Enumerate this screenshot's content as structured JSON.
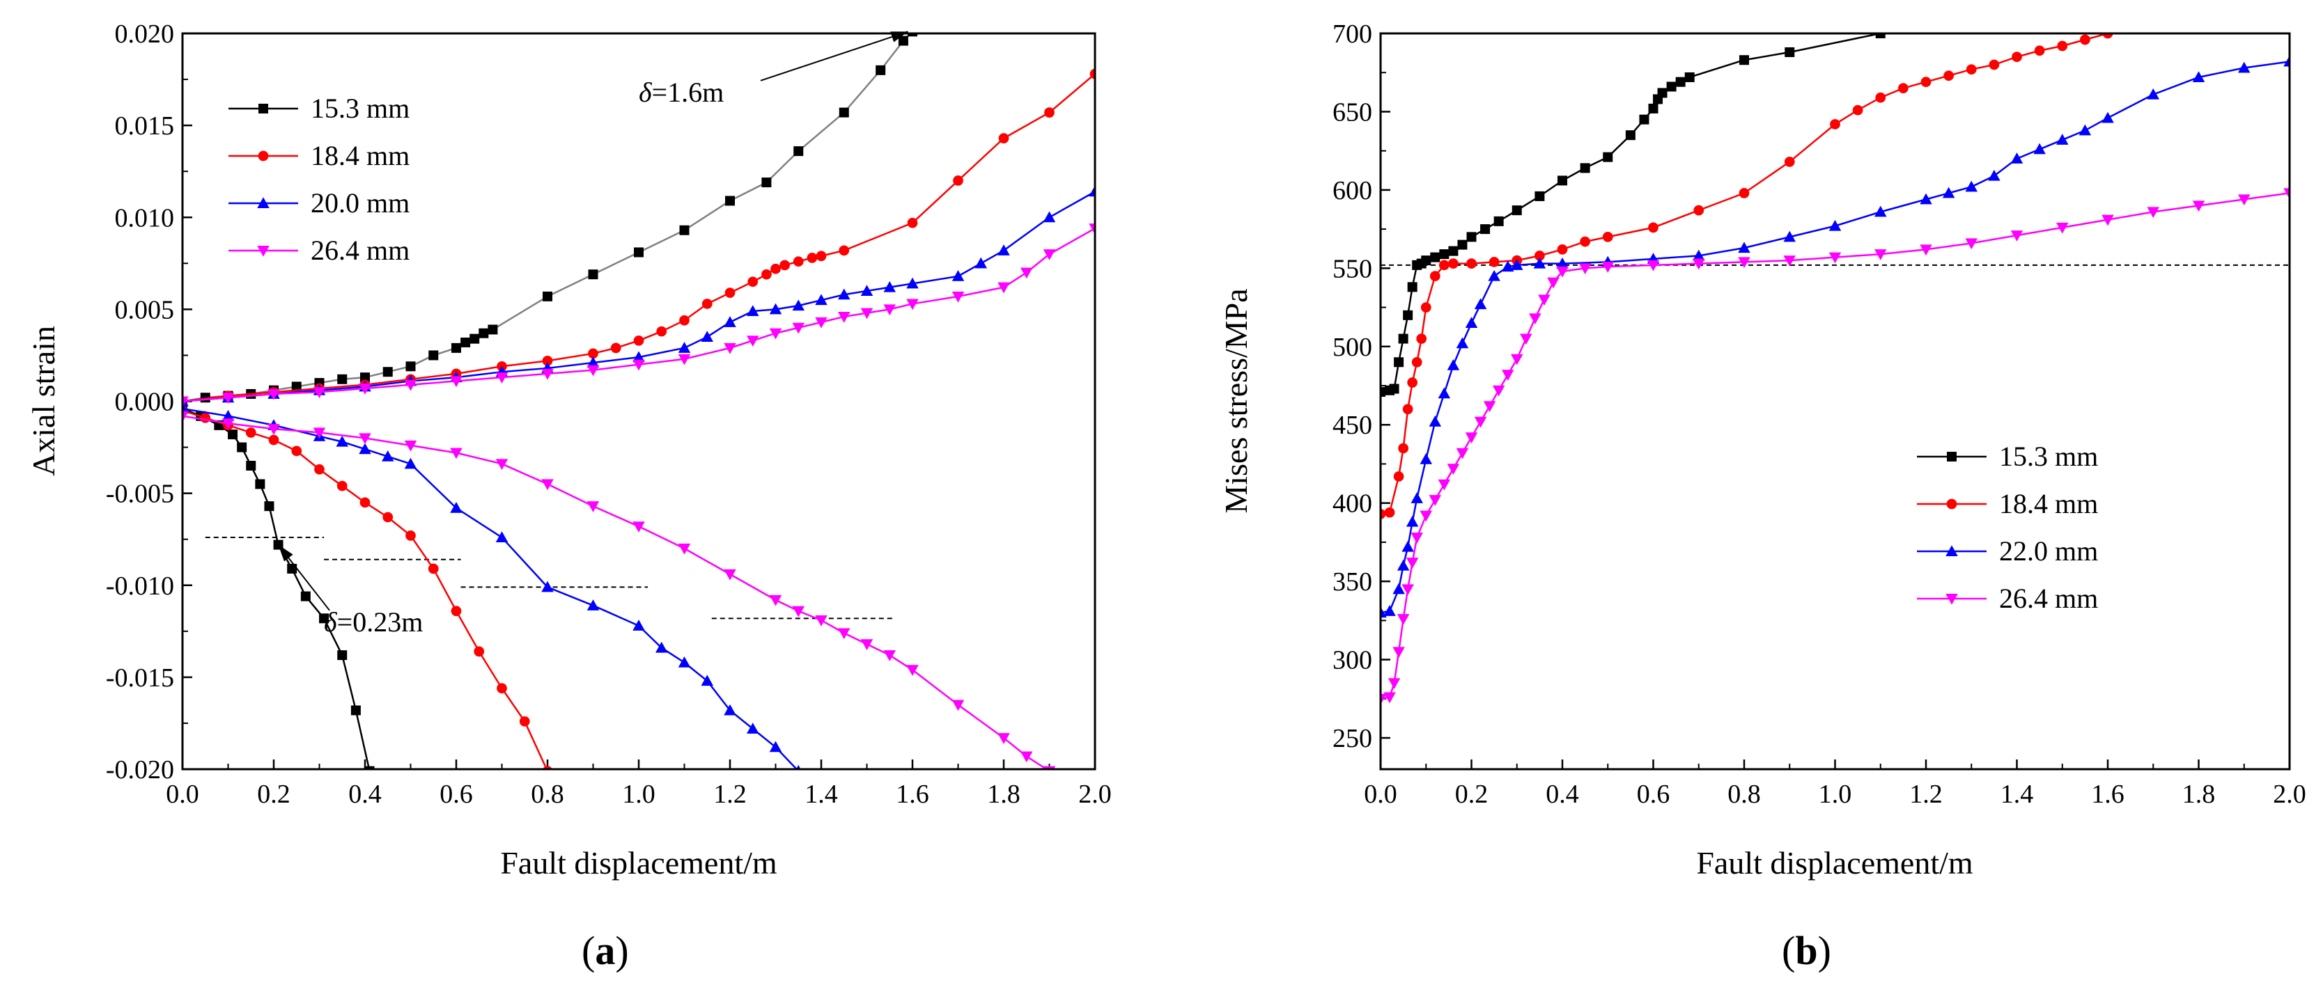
{
  "chart_data": [
    {
      "type": "line",
      "panel_label": "(a)",
      "xlabel": "Fault displacement/m",
      "ylabel": "Axial strain",
      "xlim": [
        0,
        2.0
      ],
      "ylim": [
        -0.02,
        0.02
      ],
      "xticks": [
        "0.0",
        "0.2",
        "0.4",
        "0.6",
        "0.8",
        "1.0",
        "1.2",
        "1.4",
        "1.6",
        "1.8",
        "2.0"
      ],
      "yticks": [
        "0.020",
        "0.015",
        "0.010",
        "0.005",
        "0.000",
        "-0.005",
        "-0.010",
        "-0.015",
        "-0.020"
      ],
      "grid": false,
      "legend_position": "top-left",
      "annotations": [
        {
          "text": "δ=1.6m",
          "symbol": "δ",
          "rest": "=1.6m",
          "x": 1.0,
          "y": 0.0163,
          "arrow_to": [
            1.59,
            0.0201
          ]
        },
        {
          "text": "δ=0.23m",
          "symbol": "δ",
          "rest": "=0.23m",
          "x": 0.31,
          "y": -0.0125,
          "arrow_to": [
            0.21,
            -0.0078
          ]
        }
      ],
      "dashed_levels": [
        {
          "y": -0.0074,
          "x": [
            0.05,
            0.31
          ]
        },
        {
          "y": -0.0086,
          "x": [
            0.31,
            0.61
          ]
        },
        {
          "y": -0.0101,
          "x": [
            0.61,
            1.02
          ]
        },
        {
          "y": -0.0118,
          "x": [
            1.16,
            1.56
          ]
        }
      ],
      "series": [
        {
          "name": "15.3 mm",
          "color": "#000000",
          "marker": "square",
          "line_color": "#808080",
          "x": [
            0,
            0.05,
            0.1,
            0.15,
            0.2,
            0.25,
            0.3,
            0.35,
            0.4,
            0.45,
            0.5,
            0.55,
            0.6,
            0.62,
            0.64,
            0.66,
            0.68,
            0.8,
            0.9,
            1.0,
            1.1,
            1.2,
            1.28,
            1.35,
            1.45,
            1.53,
            1.58,
            1.6
          ],
          "y": [
            0,
            0.0002,
            0.0003,
            0.0004,
            0.0006,
            0.0008,
            0.001,
            0.0012,
            0.0013,
            0.0016,
            0.0019,
            0.0025,
            0.0029,
            0.0032,
            0.0034,
            0.0037,
            0.0039,
            0.0057,
            0.0069,
            0.0081,
            0.0093,
            0.0109,
            0.0119,
            0.0136,
            0.0157,
            0.018,
            0.0196,
            0.0201
          ]
        },
        {
          "name": "15.3 mm",
          "color": "#000000",
          "marker": "square",
          "line_color": "#000000",
          "x": [
            0,
            0.04,
            0.08,
            0.11,
            0.13,
            0.15,
            0.17,
            0.19,
            0.21,
            0.24,
            0.27,
            0.31,
            0.35,
            0.38,
            0.41
          ],
          "y": [
            -0.0004,
            -0.0008,
            -0.0013,
            -0.0018,
            -0.0025,
            -0.0035,
            -0.0045,
            -0.0057,
            -0.0078,
            -0.0091,
            -0.0106,
            -0.0118,
            -0.0138,
            -0.0168,
            -0.0201
          ]
        },
        {
          "name": "18.4 mm",
          "color": "#ff0000",
          "marker": "circle",
          "x": [
            0,
            0.1,
            0.2,
            0.3,
            0.4,
            0.5,
            0.6,
            0.7,
            0.8,
            0.9,
            0.95,
            1.0,
            1.05,
            1.1,
            1.15,
            1.2,
            1.25,
            1.28,
            1.3,
            1.32,
            1.35,
            1.38,
            1.4,
            1.45,
            1.6,
            1.7,
            1.8,
            1.9,
            2.0
          ],
          "y": [
            0,
            0.0003,
            0.0005,
            0.0007,
            0.0009,
            0.0012,
            0.0015,
            0.0019,
            0.0022,
            0.0026,
            0.0029,
            0.0033,
            0.0038,
            0.0044,
            0.0053,
            0.0059,
            0.0065,
            0.0069,
            0.0072,
            0.0074,
            0.0076,
            0.0078,
            0.0079,
            0.0082,
            0.0097,
            0.012,
            0.0143,
            0.0157,
            0.0178
          ]
        },
        {
          "name": "18.4 mm",
          "color": "#ff0000",
          "marker": "circle",
          "x": [
            0,
            0.05,
            0.1,
            0.15,
            0.2,
            0.25,
            0.3,
            0.35,
            0.4,
            0.45,
            0.5,
            0.55,
            0.6,
            0.65,
            0.7,
            0.75,
            0.8
          ],
          "y": [
            -0.0005,
            -0.0009,
            -0.0013,
            -0.0017,
            -0.0021,
            -0.0027,
            -0.0037,
            -0.0046,
            -0.0055,
            -0.0063,
            -0.0073,
            -0.0091,
            -0.0114,
            -0.0136,
            -0.0156,
            -0.0174,
            -0.0201
          ]
        },
        {
          "name": "20.0 mm",
          "color": "#0000ff",
          "marker": "triangle-up",
          "x": [
            0,
            0.1,
            0.2,
            0.3,
            0.4,
            0.5,
            0.6,
            0.7,
            0.8,
            0.9,
            1.0,
            1.1,
            1.15,
            1.2,
            1.25,
            1.3,
            1.35,
            1.4,
            1.45,
            1.5,
            1.55,
            1.6,
            1.7,
            1.75,
            1.8,
            1.9,
            2.0
          ],
          "y": [
            0,
            0.0002,
            0.0004,
            0.0006,
            0.0008,
            0.0011,
            0.0013,
            0.0016,
            0.0018,
            0.0021,
            0.0024,
            0.0029,
            0.0035,
            0.0043,
            0.0049,
            0.005,
            0.0052,
            0.0055,
            0.0058,
            0.006,
            0.0062,
            0.0064,
            0.0068,
            0.0075,
            0.0082,
            0.01,
            0.0114
          ]
        },
        {
          "name": "20.0 mm",
          "color": "#0000ff",
          "marker": "triangle-up",
          "x": [
            0,
            0.1,
            0.2,
            0.3,
            0.35,
            0.4,
            0.45,
            0.5,
            0.6,
            0.7,
            0.8,
            0.9,
            1.0,
            1.05,
            1.1,
            1.15,
            1.2,
            1.25,
            1.3,
            1.35
          ],
          "y": [
            -0.0004,
            -0.0008,
            -0.0013,
            -0.0019,
            -0.0022,
            -0.0026,
            -0.003,
            -0.0034,
            -0.0058,
            -0.0074,
            -0.0101,
            -0.0111,
            -0.0122,
            -0.0134,
            -0.0142,
            -0.0152,
            -0.0168,
            -0.0178,
            -0.0188,
            -0.0201
          ]
        },
        {
          "name": "26.4 mm",
          "color": "#ff00ff",
          "marker": "triangle-down",
          "x": [
            0,
            0.1,
            0.2,
            0.3,
            0.4,
            0.5,
            0.6,
            0.7,
            0.8,
            0.9,
            1.0,
            1.1,
            1.2,
            1.25,
            1.3,
            1.35,
            1.4,
            1.45,
            1.5,
            1.55,
            1.6,
            1.7,
            1.8,
            1.85,
            1.9,
            2.0
          ],
          "y": [
            0,
            0.0002,
            0.0004,
            0.0005,
            0.0007,
            0.0009,
            0.0011,
            0.0013,
            0.0015,
            0.0017,
            0.002,
            0.0023,
            0.0029,
            0.0033,
            0.0037,
            0.004,
            0.0043,
            0.0046,
            0.0048,
            0.005,
            0.0053,
            0.0057,
            0.0062,
            0.007,
            0.008,
            0.0094
          ]
        },
        {
          "name": "26.4 mm",
          "color": "#ff00ff",
          "marker": "triangle-down",
          "x": [
            0,
            0.1,
            0.2,
            0.3,
            0.4,
            0.5,
            0.6,
            0.7,
            0.8,
            0.9,
            1.0,
            1.1,
            1.2,
            1.3,
            1.35,
            1.4,
            1.45,
            1.5,
            1.55,
            1.6,
            1.7,
            1.8,
            1.85,
            1.9
          ],
          "y": [
            -0.0008,
            -0.0012,
            -0.0015,
            -0.0017,
            -0.002,
            -0.0024,
            -0.0028,
            -0.0034,
            -0.0045,
            -0.0057,
            -0.0068,
            -0.008,
            -0.0094,
            -0.0108,
            -0.0114,
            -0.0119,
            -0.0126,
            -0.0132,
            -0.0138,
            -0.0146,
            -0.0165,
            -0.0183,
            -0.0193,
            -0.0201
          ]
        }
      ],
      "legend": [
        {
          "label": "15.3 mm",
          "color": "#000000",
          "marker": "square"
        },
        {
          "label": "18.4 mm",
          "color": "#ff0000",
          "marker": "circle"
        },
        {
          "label": "20.0 mm",
          "color": "#0000ff",
          "marker": "triangle-up"
        },
        {
          "label": "26.4 mm",
          "color": "#ff00ff",
          "marker": "triangle-down"
        }
      ]
    },
    {
      "type": "line",
      "panel_label": "(b)",
      "xlabel": "Fault displacement/m",
      "ylabel": "Mises stress/MPa",
      "xlim": [
        0,
        2.0
      ],
      "ylim": [
        230,
        700
      ],
      "xticks": [
        "0.0",
        "0.2",
        "0.4",
        "0.6",
        "0.8",
        "1.0",
        "1.2",
        "1.4",
        "1.6",
        "1.8",
        "2.0"
      ],
      "yticks": [
        "700",
        "650",
        "600",
        "550",
        "500",
        "450",
        "400",
        "350",
        "300",
        "250"
      ],
      "grid": false,
      "legend_position": "center-right",
      "dashed_levels": [
        {
          "y": 552,
          "x": [
            0,
            2.0
          ]
        }
      ],
      "series": [
        {
          "name": "15.3 mm",
          "color": "#000000",
          "marker": "square",
          "x": [
            0,
            0.02,
            0.03,
            0.04,
            0.05,
            0.06,
            0.07,
            0.08,
            0.09,
            0.1,
            0.12,
            0.14,
            0.16,
            0.18,
            0.2,
            0.23,
            0.26,
            0.3,
            0.35,
            0.4,
            0.45,
            0.5,
            0.55,
            0.58,
            0.6,
            0.61,
            0.62,
            0.64,
            0.66,
            0.68,
            0.8,
            0.9,
            1.1
          ],
          "y": [
            471,
            472,
            473,
            490,
            505,
            520,
            538,
            552,
            553,
            555,
            557,
            559,
            561,
            565,
            570,
            575,
            580,
            587,
            596,
            606,
            614,
            621,
            635,
            645,
            652,
            658,
            662,
            666,
            669,
            672,
            683,
            688,
            700
          ]
        },
        {
          "name": "18.4 mm",
          "color": "#ff0000",
          "marker": "circle",
          "x": [
            0,
            0.02,
            0.04,
            0.05,
            0.06,
            0.07,
            0.08,
            0.09,
            0.1,
            0.12,
            0.14,
            0.16,
            0.2,
            0.25,
            0.3,
            0.35,
            0.4,
            0.45,
            0.5,
            0.6,
            0.7,
            0.8,
            0.9,
            1.0,
            1.05,
            1.1,
            1.15,
            1.2,
            1.25,
            1.3,
            1.35,
            1.4,
            1.45,
            1.5,
            1.55,
            1.6
          ],
          "y": [
            393,
            394,
            417,
            435,
            460,
            477,
            490,
            505,
            525,
            545,
            552,
            553,
            553,
            554,
            555,
            558,
            562,
            567,
            570,
            576,
            587,
            598,
            618,
            642,
            651,
            659,
            665,
            669,
            673,
            677,
            680,
            685,
            689,
            692,
            696,
            700
          ]
        },
        {
          "name": "22.0 mm",
          "color": "#0000ff",
          "marker": "triangle-up",
          "x": [
            0,
            0.02,
            0.04,
            0.05,
            0.06,
            0.07,
            0.08,
            0.1,
            0.12,
            0.14,
            0.16,
            0.18,
            0.2,
            0.22,
            0.25,
            0.28,
            0.3,
            0.35,
            0.4,
            0.5,
            0.6,
            0.7,
            0.8,
            0.9,
            1.0,
            1.1,
            1.2,
            1.25,
            1.3,
            1.35,
            1.4,
            1.45,
            1.5,
            1.55,
            1.6,
            1.7,
            1.8,
            1.9,
            2.0
          ],
          "y": [
            330,
            331,
            345,
            360,
            372,
            388,
            403,
            428,
            452,
            470,
            488,
            502,
            515,
            527,
            545,
            551,
            552,
            553,
            553,
            554,
            556,
            558,
            563,
            570,
            577,
            586,
            594,
            598,
            602,
            609,
            620,
            626,
            632,
            638,
            646,
            661,
            672,
            678,
            682
          ]
        },
        {
          "name": "26.4 mm",
          "color": "#ff00ff",
          "marker": "triangle-down",
          "x": [
            0,
            0.02,
            0.03,
            0.04,
            0.05,
            0.06,
            0.07,
            0.08,
            0.1,
            0.12,
            0.14,
            0.16,
            0.18,
            0.2,
            0.22,
            0.24,
            0.26,
            0.28,
            0.3,
            0.32,
            0.34,
            0.36,
            0.38,
            0.4,
            0.45,
            0.5,
            0.6,
            0.7,
            0.8,
            0.9,
            1.0,
            1.1,
            1.2,
            1.3,
            1.4,
            1.5,
            1.6,
            1.7,
            1.8,
            1.9,
            2.0
          ],
          "y": [
            275,
            276,
            285,
            305,
            326,
            345,
            362,
            378,
            392,
            402,
            412,
            422,
            432,
            442,
            452,
            462,
            472,
            482,
            492,
            505,
            518,
            530,
            541,
            548,
            550,
            551,
            552,
            553,
            554,
            555,
            557,
            559,
            562,
            566,
            571,
            576,
            581,
            586,
            590,
            594,
            598
          ]
        }
      ],
      "legend": [
        {
          "label": "15.3 mm",
          "color": "#000000",
          "marker": "square"
        },
        {
          "label": "18.4 mm",
          "color": "#ff0000",
          "marker": "circle"
        },
        {
          "label": "22.0 mm",
          "color": "#0000ff",
          "marker": "triangle-up"
        },
        {
          "label": "26.4 mm",
          "color": "#ff00ff",
          "marker": "triangle-down"
        }
      ]
    }
  ]
}
